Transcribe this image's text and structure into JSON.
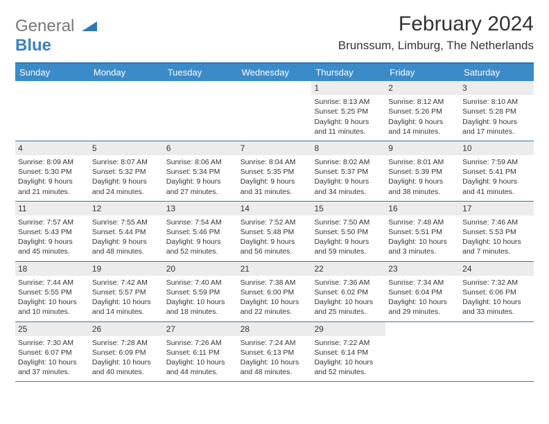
{
  "logo": {
    "text_a": "General",
    "text_b": "Blue",
    "triangle_color": "#2d78b8"
  },
  "title": "February 2024",
  "location": "Brunssum, Limburg, The Netherlands",
  "colors": {
    "header_bg": "#3b8bc9",
    "header_border": "#2d78b8",
    "daynum_bg": "#ececec",
    "text": "#333333"
  },
  "day_headers": [
    "Sunday",
    "Monday",
    "Tuesday",
    "Wednesday",
    "Thursday",
    "Friday",
    "Saturday"
  ],
  "weeks": [
    [
      {
        "empty": true
      },
      {
        "empty": true
      },
      {
        "empty": true
      },
      {
        "empty": true
      },
      {
        "num": "1",
        "sunrise": "Sunrise: 8:13 AM",
        "sunset": "Sunset: 5:25 PM",
        "d1": "Daylight: 9 hours",
        "d2": "and 11 minutes."
      },
      {
        "num": "2",
        "sunrise": "Sunrise: 8:12 AM",
        "sunset": "Sunset: 5:26 PM",
        "d1": "Daylight: 9 hours",
        "d2": "and 14 minutes."
      },
      {
        "num": "3",
        "sunrise": "Sunrise: 8:10 AM",
        "sunset": "Sunset: 5:28 PM",
        "d1": "Daylight: 9 hours",
        "d2": "and 17 minutes."
      }
    ],
    [
      {
        "num": "4",
        "sunrise": "Sunrise: 8:09 AM",
        "sunset": "Sunset: 5:30 PM",
        "d1": "Daylight: 9 hours",
        "d2": "and 21 minutes."
      },
      {
        "num": "5",
        "sunrise": "Sunrise: 8:07 AM",
        "sunset": "Sunset: 5:32 PM",
        "d1": "Daylight: 9 hours",
        "d2": "and 24 minutes."
      },
      {
        "num": "6",
        "sunrise": "Sunrise: 8:06 AM",
        "sunset": "Sunset: 5:34 PM",
        "d1": "Daylight: 9 hours",
        "d2": "and 27 minutes."
      },
      {
        "num": "7",
        "sunrise": "Sunrise: 8:04 AM",
        "sunset": "Sunset: 5:35 PM",
        "d1": "Daylight: 9 hours",
        "d2": "and 31 minutes."
      },
      {
        "num": "8",
        "sunrise": "Sunrise: 8:02 AM",
        "sunset": "Sunset: 5:37 PM",
        "d1": "Daylight: 9 hours",
        "d2": "and 34 minutes."
      },
      {
        "num": "9",
        "sunrise": "Sunrise: 8:01 AM",
        "sunset": "Sunset: 5:39 PM",
        "d1": "Daylight: 9 hours",
        "d2": "and 38 minutes."
      },
      {
        "num": "10",
        "sunrise": "Sunrise: 7:59 AM",
        "sunset": "Sunset: 5:41 PM",
        "d1": "Daylight: 9 hours",
        "d2": "and 41 minutes."
      }
    ],
    [
      {
        "num": "11",
        "sunrise": "Sunrise: 7:57 AM",
        "sunset": "Sunset: 5:43 PM",
        "d1": "Daylight: 9 hours",
        "d2": "and 45 minutes."
      },
      {
        "num": "12",
        "sunrise": "Sunrise: 7:55 AM",
        "sunset": "Sunset: 5:44 PM",
        "d1": "Daylight: 9 hours",
        "d2": "and 48 minutes."
      },
      {
        "num": "13",
        "sunrise": "Sunrise: 7:54 AM",
        "sunset": "Sunset: 5:46 PM",
        "d1": "Daylight: 9 hours",
        "d2": "and 52 minutes."
      },
      {
        "num": "14",
        "sunrise": "Sunrise: 7:52 AM",
        "sunset": "Sunset: 5:48 PM",
        "d1": "Daylight: 9 hours",
        "d2": "and 56 minutes."
      },
      {
        "num": "15",
        "sunrise": "Sunrise: 7:50 AM",
        "sunset": "Sunset: 5:50 PM",
        "d1": "Daylight: 9 hours",
        "d2": "and 59 minutes."
      },
      {
        "num": "16",
        "sunrise": "Sunrise: 7:48 AM",
        "sunset": "Sunset: 5:51 PM",
        "d1": "Daylight: 10 hours",
        "d2": "and 3 minutes."
      },
      {
        "num": "17",
        "sunrise": "Sunrise: 7:46 AM",
        "sunset": "Sunset: 5:53 PM",
        "d1": "Daylight: 10 hours",
        "d2": "and 7 minutes."
      }
    ],
    [
      {
        "num": "18",
        "sunrise": "Sunrise: 7:44 AM",
        "sunset": "Sunset: 5:55 PM",
        "d1": "Daylight: 10 hours",
        "d2": "and 10 minutes."
      },
      {
        "num": "19",
        "sunrise": "Sunrise: 7:42 AM",
        "sunset": "Sunset: 5:57 PM",
        "d1": "Daylight: 10 hours",
        "d2": "and 14 minutes."
      },
      {
        "num": "20",
        "sunrise": "Sunrise: 7:40 AM",
        "sunset": "Sunset: 5:59 PM",
        "d1": "Daylight: 10 hours",
        "d2": "and 18 minutes."
      },
      {
        "num": "21",
        "sunrise": "Sunrise: 7:38 AM",
        "sunset": "Sunset: 6:00 PM",
        "d1": "Daylight: 10 hours",
        "d2": "and 22 minutes."
      },
      {
        "num": "22",
        "sunrise": "Sunrise: 7:36 AM",
        "sunset": "Sunset: 6:02 PM",
        "d1": "Daylight: 10 hours",
        "d2": "and 25 minutes."
      },
      {
        "num": "23",
        "sunrise": "Sunrise: 7:34 AM",
        "sunset": "Sunset: 6:04 PM",
        "d1": "Daylight: 10 hours",
        "d2": "and 29 minutes."
      },
      {
        "num": "24",
        "sunrise": "Sunrise: 7:32 AM",
        "sunset": "Sunset: 6:06 PM",
        "d1": "Daylight: 10 hours",
        "d2": "and 33 minutes."
      }
    ],
    [
      {
        "num": "25",
        "sunrise": "Sunrise: 7:30 AM",
        "sunset": "Sunset: 6:07 PM",
        "d1": "Daylight: 10 hours",
        "d2": "and 37 minutes."
      },
      {
        "num": "26",
        "sunrise": "Sunrise: 7:28 AM",
        "sunset": "Sunset: 6:09 PM",
        "d1": "Daylight: 10 hours",
        "d2": "and 40 minutes."
      },
      {
        "num": "27",
        "sunrise": "Sunrise: 7:26 AM",
        "sunset": "Sunset: 6:11 PM",
        "d1": "Daylight: 10 hours",
        "d2": "and 44 minutes."
      },
      {
        "num": "28",
        "sunrise": "Sunrise: 7:24 AM",
        "sunset": "Sunset: 6:13 PM",
        "d1": "Daylight: 10 hours",
        "d2": "and 48 minutes."
      },
      {
        "num": "29",
        "sunrise": "Sunrise: 7:22 AM",
        "sunset": "Sunset: 6:14 PM",
        "d1": "Daylight: 10 hours",
        "d2": "and 52 minutes."
      },
      {
        "empty": true
      },
      {
        "empty": true
      }
    ]
  ]
}
